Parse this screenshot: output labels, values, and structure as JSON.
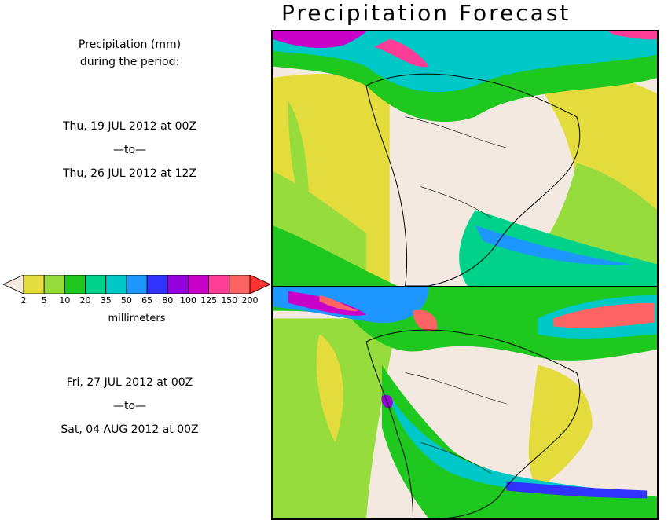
{
  "title": "Precipitation Forecast",
  "header": {
    "line1": "Precipitation (mm)",
    "line2": "during the period:"
  },
  "period1": {
    "start": "Thu, 19 JUL 2012 at 00Z",
    "sep": "—to—",
    "end": "Thu, 26 JUL 2012 at 12Z"
  },
  "period2": {
    "start": "Fri, 27 JUL 2012 at 00Z",
    "sep": "—to—",
    "end": "Sat, 04 AUG 2012 at 00Z"
  },
  "legend": {
    "units": "millimeters",
    "ticks": [
      "2",
      "5",
      "10",
      "20",
      "35",
      "50",
      "65",
      "80",
      "100",
      "125",
      "150",
      "200"
    ],
    "colors": [
      "#f5ebe0",
      "#e3dc3c",
      "#96dc3c",
      "#1ec81e",
      "#00d28c",
      "#00c8c8",
      "#1e96ff",
      "#3232ff",
      "#9600dc",
      "#c800c8",
      "#ff3c96",
      "#ff6464",
      "#ff3232"
    ]
  },
  "map_colors": {
    "land_dry": "#f3e9e1",
    "ocean_dry": "#f3e9e1",
    "light_yellow": "#e3dc3c",
    "light_green": "#96dc3c",
    "green": "#1ec81e",
    "teal": "#00d28c",
    "cyan": "#00c8c8",
    "blue": "#1e96ff",
    "purple": "#9600dc",
    "magenta": "#c800c8",
    "pink": "#ff3c96",
    "red": "#ff6464"
  }
}
